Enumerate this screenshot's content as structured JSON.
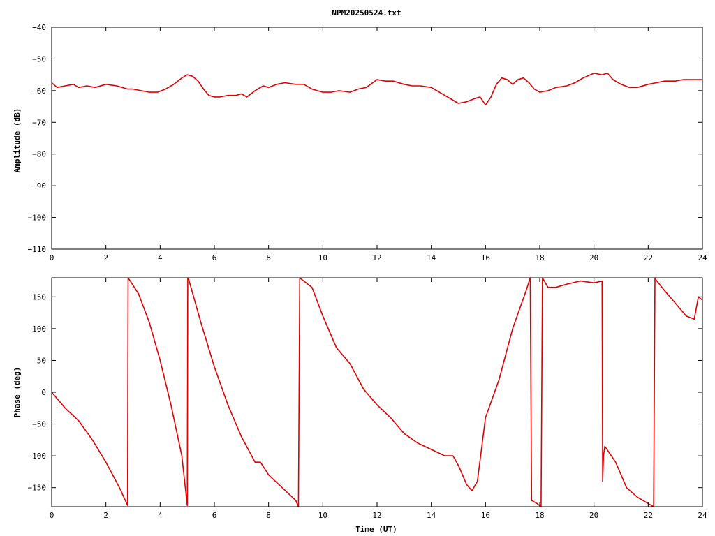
{
  "title": "NPM20250524.txt",
  "colors": {
    "trace": "#e00000",
    "axes": "#000000",
    "background": "#ffffff"
  },
  "chart_data": [
    {
      "type": "line",
      "title": "NPM20250524.txt",
      "xlabel": "",
      "ylabel": "Amplitude (dB)",
      "xlim": [
        0,
        24
      ],
      "ylim": [
        -110,
        -40
      ],
      "xticks": [
        0,
        2,
        4,
        6,
        8,
        10,
        12,
        14,
        16,
        18,
        20,
        22,
        24
      ],
      "yticks": [
        -110,
        -100,
        -90,
        -80,
        -70,
        -60,
        -50,
        -40
      ],
      "grid": false,
      "series": [
        {
          "x": [
            0,
            0.2,
            0.5,
            0.8,
            1.0,
            1.3,
            1.6,
            2.0,
            2.4,
            2.8,
            3.0,
            3.3,
            3.6,
            3.9,
            4.2,
            4.5,
            4.8,
            5.0,
            5.2,
            5.4,
            5.6,
            5.8,
            6.0,
            6.2,
            6.5,
            6.8,
            7.0,
            7.2,
            7.5,
            7.8,
            8.0,
            8.3,
            8.6,
            9.0,
            9.3,
            9.6,
            10.0,
            10.3,
            10.6,
            11.0,
            11.3,
            11.6,
            12.0,
            12.3,
            12.6,
            13.0,
            13.3,
            13.6,
            14.0,
            14.3,
            14.6,
            15.0,
            15.3,
            15.6,
            15.8,
            16.0,
            16.2,
            16.4,
            16.6,
            16.8,
            17.0,
            17.2,
            17.4,
            17.6,
            17.8,
            18.0,
            18.3,
            18.6,
            19.0,
            19.3,
            19.6,
            20.0,
            20.3,
            20.5,
            20.7,
            21.0,
            21.3,
            21.6,
            22.0,
            22.3,
            22.6,
            23.0,
            23.3,
            23.6,
            24.0
          ],
          "y": [
            -57.5,
            -59,
            -58.5,
            -58,
            -59,
            -58.5,
            -59,
            -58,
            -58.5,
            -59.5,
            -59.5,
            -60,
            -60.5,
            -60.5,
            -59.5,
            -58,
            -56,
            -55,
            -55.5,
            -57,
            -59.5,
            -61.5,
            -62,
            -62,
            -61.5,
            -61.5,
            -61,
            -62,
            -60,
            -58.5,
            -59,
            -58,
            -57.5,
            -58,
            -58,
            -59.5,
            -60.5,
            -60.5,
            -60,
            -60.5,
            -59.5,
            -59,
            -56.5,
            -57,
            -57,
            -58,
            -58.5,
            -58.5,
            -59,
            -60.5,
            -62,
            -64,
            -63.5,
            -62.5,
            -62,
            -64.5,
            -62,
            -58,
            -56,
            -56.5,
            -58,
            -56.5,
            -56,
            -57.5,
            -59.5,
            -60.5,
            -60,
            -59,
            -58.5,
            -57.5,
            -56,
            -54.5,
            -55,
            -54.5,
            -56.5,
            -58,
            -59,
            -59,
            -58,
            -57.5,
            -57,
            -57,
            -56.5,
            -56.5,
            -56.5
          ]
        }
      ]
    },
    {
      "type": "line",
      "title": "",
      "xlabel": "Time (UT)",
      "ylabel": "Phase (deg)",
      "xlim": [
        0,
        24
      ],
      "ylim": [
        -180,
        180
      ],
      "xticks": [
        0,
        2,
        4,
        6,
        8,
        10,
        12,
        14,
        16,
        18,
        20,
        22,
        24
      ],
      "yticks": [
        -150,
        -100,
        -50,
        0,
        50,
        100,
        150
      ],
      "grid": false,
      "series": [
        {
          "x": [
            0,
            0.5,
            1.0,
            1.5,
            2.0,
            2.5,
            2.8,
            2.82,
            2.85,
            3.2,
            3.6,
            4.0,
            4.4,
            4.8,
            5.0,
            5.02,
            5.05,
            5.5,
            6.0,
            6.5,
            7.0,
            7.5,
            7.7,
            8.0,
            8.5,
            9.0,
            9.1,
            9.15,
            9.2,
            9.6,
            10.0,
            10.5,
            11.0,
            11.5,
            12.0,
            12.5,
            13.0,
            13.5,
            14.0,
            14.5,
            14.8,
            15.0,
            15.3,
            15.5,
            15.7,
            16.0,
            16.5,
            17.0,
            17.5,
            17.65,
            17.7,
            17.9,
            18.05,
            18.1,
            18.3,
            18.6,
            19.0,
            19.5,
            20.0,
            20.3,
            20.32,
            20.35,
            20.4,
            20.8,
            21.2,
            21.6,
            22.0,
            22.2,
            22.25,
            22.3,
            22.6,
            23.0,
            23.4,
            23.7,
            23.85,
            24.0
          ],
          "y": [
            0,
            -25,
            -45,
            -75,
            -110,
            -150,
            -178,
            180,
            178,
            155,
            110,
            50,
            -20,
            -100,
            -178,
            180,
            178,
            110,
            40,
            -20,
            -70,
            -110,
            -110,
            -130,
            -150,
            -170,
            -180,
            180,
            178,
            165,
            120,
            70,
            45,
            5,
            -20,
            -40,
            -65,
            -80,
            -90,
            -100,
            -100,
            -115,
            -145,
            -155,
            -140,
            -40,
            20,
            100,
            160,
            180,
            -170,
            -175,
            -180,
            180,
            165,
            165,
            170,
            175,
            172,
            175,
            -140,
            -100,
            -85,
            -110,
            -150,
            -165,
            -175,
            -180,
            180,
            176,
            160,
            140,
            120,
            115,
            150,
            145
          ]
        }
      ]
    }
  ]
}
